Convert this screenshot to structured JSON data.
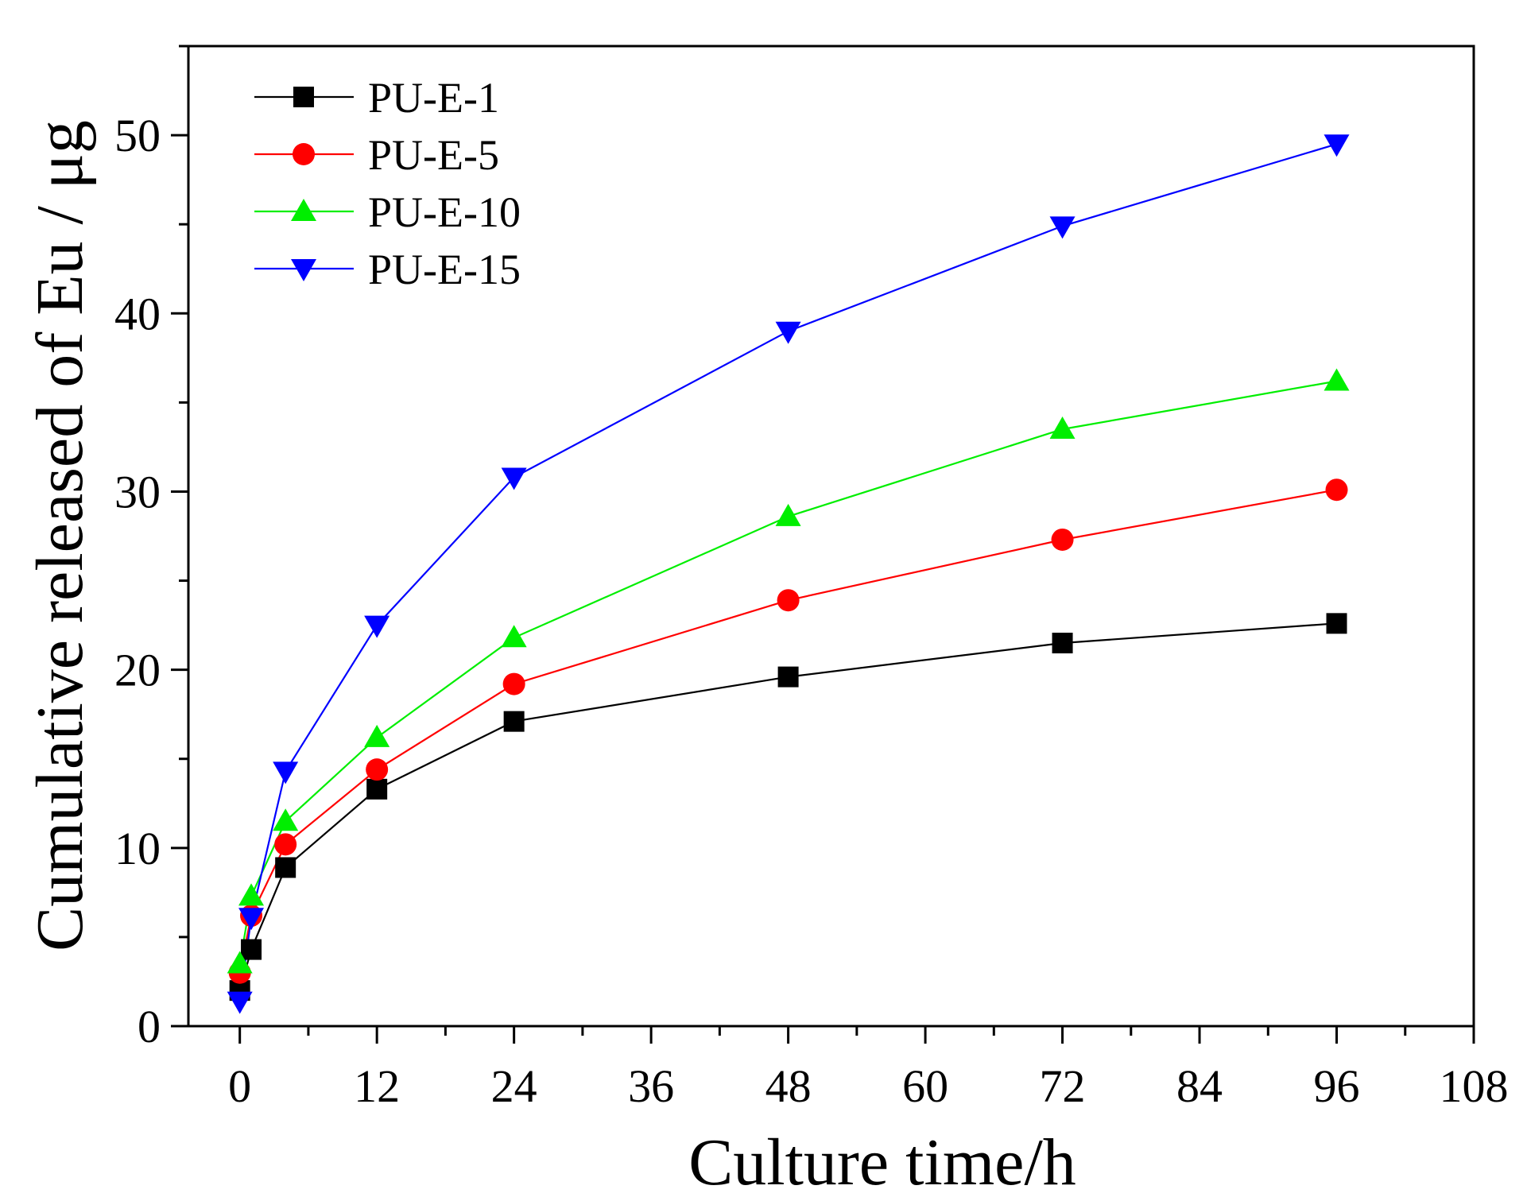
{
  "chart_data": {
    "type": "line",
    "title": "",
    "xlabel": "Culture time/h",
    "ylabel": "Cumulative released of Eu / μg",
    "xlim": [
      -4.5,
      108
    ],
    "ylim": [
      0,
      55
    ],
    "xticks": [
      0,
      12,
      24,
      36,
      48,
      60,
      72,
      84,
      96,
      108
    ],
    "yticks": [
      0,
      10,
      20,
      30,
      40,
      50
    ],
    "grid": false,
    "legend_position": "top-left",
    "x": [
      0,
      1,
      4,
      12,
      24,
      48,
      72,
      96
    ],
    "series": [
      {
        "name": "PU-E-1",
        "color": "#000000",
        "marker": "square",
        "values": [
          2.0,
          4.3,
          8.9,
          13.3,
          17.1,
          19.6,
          21.5,
          22.6
        ]
      },
      {
        "name": "PU-E-5",
        "color": "#ff0000",
        "marker": "circle",
        "values": [
          3.0,
          6.2,
          10.2,
          14.4,
          19.2,
          23.9,
          27.3,
          30.1
        ]
      },
      {
        "name": "PU-E-10",
        "color": "#00ee00",
        "marker": "triangle-up",
        "values": [
          3.5,
          7.3,
          11.5,
          16.2,
          21.8,
          28.6,
          33.5,
          36.2
        ]
      },
      {
        "name": "PU-E-15",
        "color": "#0000ff",
        "marker": "triangle-down",
        "values": [
          1.4,
          6.1,
          14.3,
          22.5,
          30.8,
          39.0,
          44.9,
          49.5
        ]
      }
    ]
  }
}
